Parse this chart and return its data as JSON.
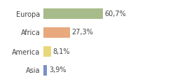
{
  "categories": [
    "Europa",
    "Africa",
    "America",
    "Asia"
  ],
  "values": [
    60.7,
    27.3,
    8.1,
    3.9
  ],
  "labels": [
    "60,7%",
    "27,3%",
    "8,1%",
    "3,9%"
  ],
  "bar_colors": [
    "#a8bb8a",
    "#e8a97e",
    "#e8d87a",
    "#7b8ec8"
  ],
  "background_color": "#ffffff",
  "xlim": [
    0,
    100
  ],
  "label_fontsize": 7.0,
  "category_fontsize": 7.0
}
